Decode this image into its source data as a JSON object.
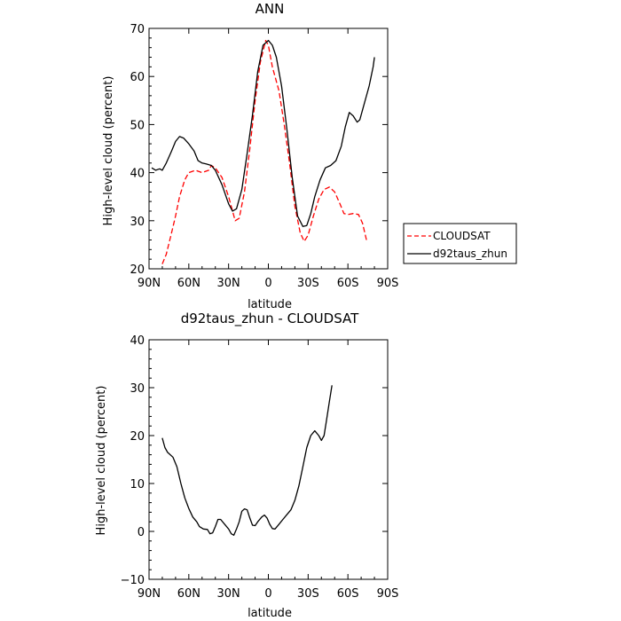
{
  "chart_data": [
    {
      "type": "line",
      "title": "ANN",
      "xlabel": "latitude",
      "ylabel": "High-level cloud (percent)",
      "xlim": [
        90,
        -90
      ],
      "ylim": [
        20,
        70
      ],
      "xticks": [
        90,
        60,
        30,
        0,
        -30,
        -60,
        -90
      ],
      "xtick_labels": [
        "90N",
        "60N",
        "30N",
        "0",
        "30S",
        "60S",
        "90S"
      ],
      "yticks": [
        20,
        30,
        40,
        50,
        60,
        70
      ],
      "ytick_labels": [
        "20",
        "30",
        "40",
        "50",
        "60",
        "70"
      ],
      "legend_position": "right",
      "series": [
        {
          "name": "CLOUDSAT",
          "color": "#ff0000",
          "dash": "dashed",
          "points": [
            [
              80,
              21
            ],
            [
              77,
              23
            ],
            [
              73,
              27.5
            ],
            [
              70,
              31
            ],
            [
              67,
              35
            ],
            [
              63,
              38.5
            ],
            [
              60,
              40
            ],
            [
              55,
              40.5
            ],
            [
              50,
              40
            ],
            [
              45,
              40.5
            ],
            [
              43,
              41.5
            ],
            [
              40,
              41
            ],
            [
              35,
              39
            ],
            [
              30,
              35
            ],
            [
              25,
              30
            ],
            [
              22,
              30.5
            ],
            [
              18,
              36
            ],
            [
              14,
              45
            ],
            [
              10,
              55
            ],
            [
              6,
              63
            ],
            [
              2,
              67.5
            ],
            [
              0,
              66.5
            ],
            [
              -3,
              62
            ],
            [
              -8,
              57
            ],
            [
              -12,
              50
            ],
            [
              -16,
              42
            ],
            [
              -20,
              33
            ],
            [
              -24,
              27.5
            ],
            [
              -27,
              25.7
            ],
            [
              -30,
              27
            ],
            [
              -34,
              31
            ],
            [
              -38,
              34.5
            ],
            [
              -42,
              36.5
            ],
            [
              -46,
              37
            ],
            [
              -50,
              36
            ],
            [
              -54,
              33.5
            ],
            [
              -57,
              31.5
            ],
            [
              -60,
              31.3
            ],
            [
              -64,
              31.5
            ],
            [
              -68,
              31.3
            ],
            [
              -71,
              29.5
            ],
            [
              -74,
              26
            ]
          ]
        },
        {
          "name": "d92taus_zhun",
          "color": "#000000",
          "dash": "solid",
          "points": [
            [
              88,
              41
            ],
            [
              85,
              40.5
            ],
            [
              82,
              40.8
            ],
            [
              80,
              40.5
            ],
            [
              77,
              42
            ],
            [
              73,
              44.5
            ],
            [
              70,
              46.5
            ],
            [
              67,
              47.5
            ],
            [
              64,
              47.2
            ],
            [
              60,
              46
            ],
            [
              56,
              44.5
            ],
            [
              53,
              42.5
            ],
            [
              50,
              42
            ],
            [
              47,
              41.8
            ],
            [
              43,
              41.5
            ],
            [
              40,
              40.5
            ],
            [
              35,
              37.5
            ],
            [
              30,
              33.5
            ],
            [
              27,
              32
            ],
            [
              24,
              32.5
            ],
            [
              20,
              36.5
            ],
            [
              16,
              44
            ],
            [
              12,
              52
            ],
            [
              8,
              61
            ],
            [
              4,
              66.5
            ],
            [
              0,
              67.5
            ],
            [
              -3,
              66.5
            ],
            [
              -6,
              64
            ],
            [
              -10,
              58
            ],
            [
              -14,
              49
            ],
            [
              -18,
              39
            ],
            [
              -22,
              31
            ],
            [
              -26,
              28.8
            ],
            [
              -29,
              29
            ],
            [
              -32,
              31.5
            ],
            [
              -35,
              35
            ],
            [
              -39,
              38.5
            ],
            [
              -43,
              41
            ],
            [
              -47,
              41.5
            ],
            [
              -51,
              42.5
            ],
            [
              -55,
              45.5
            ],
            [
              -58,
              49.5
            ],
            [
              -61,
              52.5
            ],
            [
              -64,
              51.8
            ],
            [
              -67,
              50.5
            ],
            [
              -69,
              51
            ],
            [
              -72,
              54
            ],
            [
              -76,
              58
            ],
            [
              -79,
              62
            ],
            [
              -80,
              64
            ]
          ]
        }
      ]
    },
    {
      "type": "line",
      "title": "d92taus_zhun - CLOUDSAT",
      "xlabel": "latitude",
      "ylabel": "High-level cloud (percent)",
      "xlim": [
        90,
        -90
      ],
      "ylim": [
        -10,
        40
      ],
      "xticks": [
        90,
        60,
        30,
        0,
        -30,
        -60,
        -90
      ],
      "xtick_labels": [
        "90N",
        "60N",
        "30N",
        "0",
        "30S",
        "60S",
        "90S"
      ],
      "yticks": [
        -10,
        0,
        10,
        20,
        30,
        40
      ],
      "ytick_labels": [
        "−10",
        "0",
        "10",
        "20",
        "30",
        "40"
      ],
      "series": [
        {
          "color": "#000000",
          "dash": "solid",
          "points": [
            [
              80,
              19.5
            ],
            [
              78,
              17.5
            ],
            [
              76,
              16.5
            ],
            [
              72,
              15.5
            ],
            [
              69,
              13.5
            ],
            [
              66,
              10
            ],
            [
              63,
              7
            ],
            [
              60,
              4.8
            ],
            [
              57,
              3
            ],
            [
              54,
              2
            ],
            [
              52,
              1
            ],
            [
              49,
              0.5
            ],
            [
              46,
              0.4
            ],
            [
              44,
              -0.5
            ],
            [
              42,
              -0.3
            ],
            [
              40,
              1
            ],
            [
              38,
              2.5
            ],
            [
              36,
              2.5
            ],
            [
              33,
              1.5
            ],
            [
              30,
              0.5
            ],
            [
              28,
              -0.5
            ],
            [
              26,
              -0.8
            ],
            [
              24,
              0.5
            ],
            [
              22,
              2
            ],
            [
              20,
              4.2
            ],
            [
              18,
              4.7
            ],
            [
              16,
              4.5
            ],
            [
              14,
              2.8
            ],
            [
              12,
              1.3
            ],
            [
              10,
              1.2
            ],
            [
              8,
              2
            ],
            [
              5,
              3
            ],
            [
              3,
              3.4
            ],
            [
              1,
              2.8
            ],
            [
              -1,
              1.5
            ],
            [
              -3,
              0.6
            ],
            [
              -5,
              0.5
            ],
            [
              -8,
              1.5
            ],
            [
              -11,
              2.5
            ],
            [
              -14,
              3.5
            ],
            [
              -17,
              4.5
            ],
            [
              -20,
              6.5
            ],
            [
              -23,
              9.5
            ],
            [
              -26,
              13.5
            ],
            [
              -29,
              17.5
            ],
            [
              -32,
              20
            ],
            [
              -35,
              21
            ],
            [
              -38,
              20
            ],
            [
              -40,
              19
            ],
            [
              -42,
              20
            ],
            [
              -44,
              23.5
            ],
            [
              -46,
              27
            ],
            [
              -48,
              30.5
            ]
          ]
        }
      ]
    }
  ]
}
